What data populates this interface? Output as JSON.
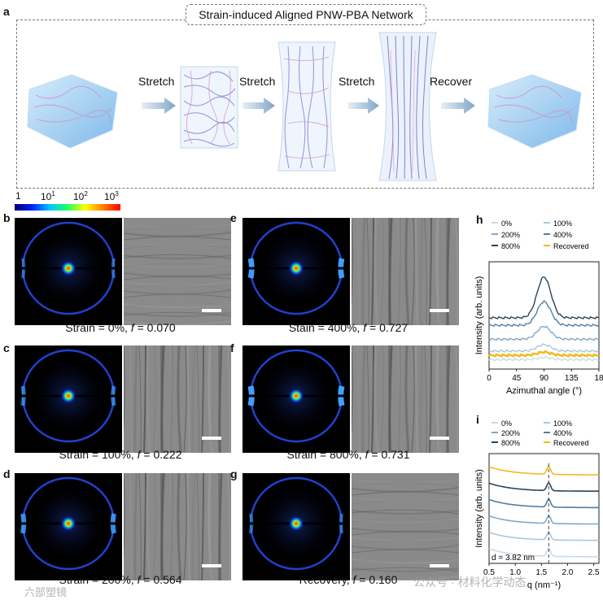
{
  "figure": {
    "panel_a": {
      "label": "a",
      "title": "Strain-induced Aligned PNW-PBA Network",
      "steps": [
        "Stretch",
        "Stretch",
        "Stretch",
        "Recover"
      ]
    },
    "colorbar": {
      "labels": [
        "1",
        "10",
        "1",
        "10",
        "2",
        "10",
        "3"
      ],
      "ticks": [
        {
          "base": "1",
          "exp": ""
        },
        {
          "base": "10",
          "exp": "1"
        },
        {
          "base": "10",
          "exp": "2"
        },
        {
          "base": "10",
          "exp": "3"
        }
      ],
      "colors": [
        "#000070",
        "#0020ff",
        "#00c8ff",
        "#20ff60",
        "#ffff00",
        "#ff8000",
        "#ff0000"
      ]
    },
    "panels": [
      {
        "label": "b",
        "prefix": "Strain = 0%, ",
        "f_label": "f",
        "f_value": " = 0.070",
        "arc_strength": 0.25
      },
      {
        "label": "c",
        "prefix": "Strain = 100%, ",
        "f_label": "f",
        "f_value": " = 0.222",
        "arc_strength": 0.5
      },
      {
        "label": "d",
        "prefix": "Strain = 200%, ",
        "f_label": "f",
        "f_value": " = 0.564",
        "arc_strength": 0.75
      },
      {
        "label": "e",
        "prefix": "Stain = 400%, ",
        "f_label": "f",
        "f_value": " = 0.727",
        "arc_strength": 0.95
      },
      {
        "label": "f",
        "prefix": "Strain = 800%, ",
        "f_label": "f",
        "f_value": " = 0.731",
        "arc_strength": 1.0
      },
      {
        "label": "g",
        "prefix": "Recovery, ",
        "f_label": "f",
        "f_value": " = 0.160",
        "arc_strength": 0.3
      }
    ],
    "panel_h_label": "h",
    "panel_i_label": "i",
    "watermark_left": "六部塑镜",
    "watermark_right": "公众号 · 材料化学动态"
  },
  "chart_data": [
    {
      "type": "line",
      "panel": "h",
      "xlabel": "Azimuthal angle (°)",
      "ylabel": "Intensity (arb. units)",
      "xlim": [
        0,
        180
      ],
      "xticks": [
        "0",
        "45",
        "90",
        "135",
        "18"
      ],
      "legend": [
        "0%",
        "100%",
        "200%",
        "400%",
        "800%",
        "Recovered"
      ],
      "legend_placement": "top",
      "series": [
        {
          "name": "0%",
          "color": "#c9dbe8",
          "peak_x": 90,
          "baseline": 0.08,
          "peak_height": 0.02
        },
        {
          "name": "100%",
          "color": "#a9c7dd",
          "peak_x": 90,
          "baseline": 0.16,
          "peak_height": 0.06
        },
        {
          "name": "200%",
          "color": "#7ea9c9",
          "peak_x": 90,
          "baseline": 0.27,
          "peak_height": 0.12
        },
        {
          "name": "400%",
          "color": "#4f7ea3",
          "peak_x": 90,
          "baseline": 0.4,
          "peak_height": 0.22
        },
        {
          "name": "800%",
          "color": "#2b4457",
          "peak_x": 90,
          "baseline": 0.47,
          "peak_height": 0.38
        },
        {
          "name": "Recovered",
          "color": "#f2b91e",
          "peak_x": 90,
          "baseline": 0.12,
          "peak_height": 0.03
        }
      ]
    },
    {
      "type": "line",
      "panel": "i",
      "xlabel": "q (nm⁻¹)",
      "ylabel": "Intensity (arb. units)",
      "xlim": [
        0.5,
        2.6
      ],
      "xticks": [
        "0.5",
        "1.0",
        "1.5",
        "2.0",
        "2.5"
      ],
      "legend": [
        "0%",
        "100%",
        "200%",
        "400%",
        "800%",
        "Recovered"
      ],
      "legend_placement": "top",
      "annotation": "d = 3.82 nm",
      "peak_q": 1.64,
      "series": [
        {
          "name": "0%",
          "color": "#c9dbe8",
          "offset": 0
        },
        {
          "name": "100%",
          "color": "#a9c7dd",
          "offset": 1
        },
        {
          "name": "200%",
          "color": "#7ea9c9",
          "offset": 2
        },
        {
          "name": "400%",
          "color": "#4f7ea3",
          "offset": 3
        },
        {
          "name": "800%",
          "color": "#2b4457",
          "offset": 4
        },
        {
          "name": "Recovered",
          "color": "#f2b91e",
          "offset": 5
        }
      ]
    }
  ]
}
